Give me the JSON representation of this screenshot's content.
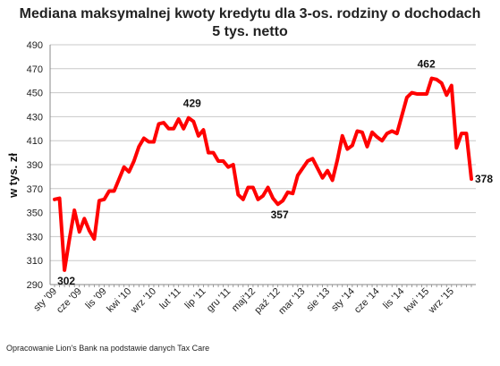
{
  "chart_data": {
    "type": "line",
    "title_lines": [
      "Mediana maksymalnej kwoty kredytu dla 3-os. rodziny o dochodach",
      "5 tys. netto"
    ],
    "ylabel": "w tys. zł",
    "xlabel": "",
    "ylim": [
      290,
      490
    ],
    "yticks": [
      290,
      310,
      330,
      350,
      370,
      390,
      410,
      430,
      450,
      470,
      490
    ],
    "grid": true,
    "legend": "none",
    "x_tick_labels": [
      "sty '09",
      "cze '09",
      "lis '09",
      "kwi '10",
      "wrz '10",
      "lut '11",
      "lip '11",
      "gru '11",
      "maj'12",
      "paź '12",
      "mar '13",
      "sie '13",
      "sty '14",
      "cze '14",
      "lis '14",
      "kwi '15",
      "wrz '15"
    ],
    "series": [
      {
        "color": "#ff0000",
        "values": [
          361,
          362,
          302,
          328,
          352,
          334,
          345,
          335,
          328,
          360,
          361,
          368,
          368,
          378,
          388,
          384,
          393,
          405,
          412,
          409,
          409,
          424,
          425,
          420,
          420,
          428,
          420,
          429,
          426,
          414,
          419,
          400,
          400,
          393,
          393,
          388,
          390,
          365,
          361,
          371,
          371,
          361,
          364,
          371,
          362,
          357,
          360,
          367,
          366,
          381,
          387,
          393,
          395,
          387,
          379,
          385,
          377,
          394,
          414,
          403,
          406,
          418,
          417,
          405,
          417,
          413,
          410,
          416,
          418,
          416,
          431,
          446,
          450,
          449,
          449,
          449,
          462,
          461,
          458,
          448,
          456,
          404,
          416,
          416,
          378
        ],
        "point_labels": [
          {
            "index": 2,
            "text": "302"
          },
          {
            "index": 27,
            "text": "429"
          },
          {
            "index": 45,
            "text": "357"
          },
          {
            "index": 76,
            "text": "462"
          },
          {
            "index": 84,
            "text": "378"
          }
        ]
      }
    ]
  },
  "source_note": "Opracowanie Lion's Bank na podstawie danych Tax Care"
}
